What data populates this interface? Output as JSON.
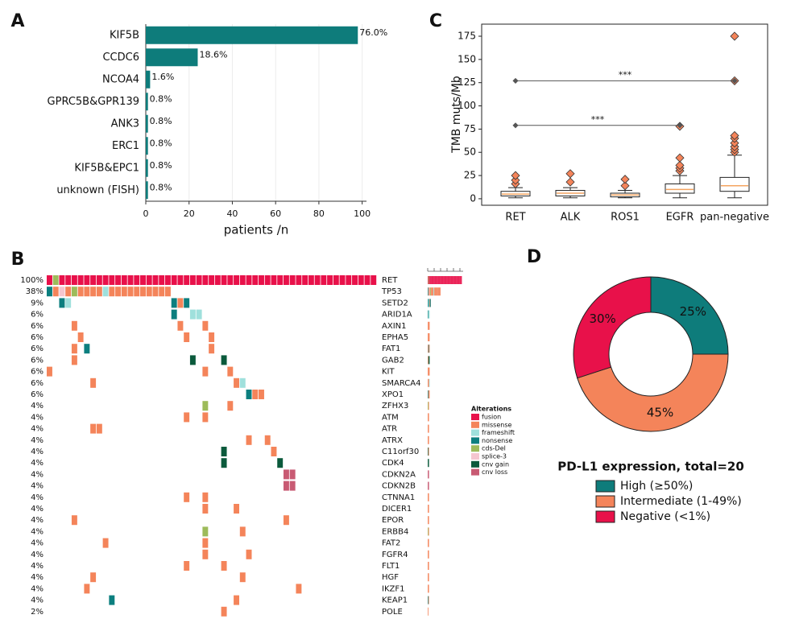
{
  "chart_data": [
    {
      "type": "bar",
      "panel": "A",
      "orientation": "horizontal",
      "categories": [
        "KIF5B",
        "CCDC6",
        "NCOA4",
        "GPRC5B&GPR139",
        "ANK3",
        "ERC1",
        "KIF5B&EPC1",
        "unknown (FISH)"
      ],
      "values": [
        98,
        24,
        2,
        1,
        1,
        1,
        1,
        1
      ],
      "value_labels": [
        "76.0%",
        "18.6%",
        "1.6%",
        "0.8%",
        "0.8%",
        "0.8%",
        "0.8%",
        "0.8%"
      ],
      "color": "#0e7c7b",
      "xlabel": "patients /n",
      "xlim": [
        0,
        102
      ],
      "xticks": [
        0,
        20,
        40,
        60,
        80,
        100
      ],
      "grid": true
    },
    {
      "type": "oncoprint",
      "panel": "B",
      "legend_title": "Alterations",
      "alteration_types": [
        {
          "name": "fusion",
          "color": "#e8114a"
        },
        {
          "name": "missense",
          "color": "#f4845a"
        },
        {
          "name": "frameshift",
          "color": "#9fe0dc"
        },
        {
          "name": "nonsense",
          "color": "#0c7f7f"
        },
        {
          "name": "cds-Del",
          "color": "#9dbb5a"
        },
        {
          "name": "splice-3",
          "color": "#f5c6cf"
        },
        {
          "name": "cnv gain",
          "color": "#0b5a3c"
        },
        {
          "name": "cnv loss",
          "color": "#c85a73"
        }
      ],
      "n_samples": 53,
      "side_xlim": [
        0,
        55
      ],
      "side_xticks": [
        0,
        10,
        20,
        30,
        40,
        50
      ],
      "genes": [
        {
          "name": "RET",
          "frequency": "100%",
          "alterations": [
            [
              0,
              0
            ],
            [
              1,
              4
            ],
            [
              2,
              0
            ],
            [
              3,
              0
            ],
            [
              4,
              0
            ],
            [
              5,
              0
            ],
            [
              6,
              0
            ],
            [
              7,
              0
            ],
            [
              8,
              0
            ],
            [
              9,
              0
            ],
            [
              10,
              0
            ],
            [
              11,
              0
            ],
            [
              12,
              0
            ],
            [
              13,
              0
            ],
            [
              14,
              0
            ],
            [
              15,
              0
            ],
            [
              16,
              0
            ],
            [
              17,
              0
            ],
            [
              18,
              0
            ],
            [
              19,
              0
            ],
            [
              20,
              0
            ],
            [
              21,
              0
            ],
            [
              22,
              0
            ],
            [
              23,
              0
            ],
            [
              24,
              0
            ],
            [
              25,
              0
            ],
            [
              26,
              0
            ],
            [
              27,
              0
            ],
            [
              28,
              0
            ],
            [
              29,
              0
            ],
            [
              30,
              0
            ],
            [
              31,
              0
            ],
            [
              32,
              0
            ],
            [
              33,
              0
            ],
            [
              34,
              0
            ],
            [
              35,
              0
            ],
            [
              36,
              0
            ],
            [
              37,
              0
            ],
            [
              38,
              0
            ],
            [
              39,
              0
            ],
            [
              40,
              0
            ],
            [
              41,
              0
            ],
            [
              42,
              0
            ],
            [
              43,
              0
            ],
            [
              44,
              0
            ],
            [
              45,
              0
            ],
            [
              46,
              0
            ],
            [
              47,
              0
            ],
            [
              48,
              0
            ],
            [
              49,
              0
            ],
            [
              50,
              0
            ],
            [
              51,
              0
            ],
            [
              52,
              0
            ]
          ]
        },
        {
          "name": "TP53",
          "frequency": "38%",
          "alterations": [
            [
              0,
              3
            ],
            [
              1,
              1
            ],
            [
              2,
              5
            ],
            [
              3,
              1
            ],
            [
              4,
              4
            ],
            [
              5,
              1
            ],
            [
              6,
              1
            ],
            [
              7,
              1
            ],
            [
              8,
              1
            ],
            [
              9,
              2
            ],
            [
              10,
              1
            ],
            [
              11,
              1
            ],
            [
              12,
              1
            ],
            [
              13,
              1
            ],
            [
              14,
              1
            ],
            [
              15,
              1
            ],
            [
              16,
              1
            ],
            [
              17,
              1
            ],
            [
              18,
              1
            ],
            [
              19,
              1
            ]
          ]
        },
        {
          "name": "SETD2",
          "frequency": "9%",
          "alterations": [
            [
              2,
              3
            ],
            [
              3,
              2
            ],
            [
              20,
              3
            ],
            [
              21,
              1
            ],
            [
              22,
              3
            ]
          ]
        },
        {
          "name": "ARID1A",
          "frequency": "6%",
          "alterations": [
            [
              20,
              3
            ],
            [
              23,
              2
            ],
            [
              24,
              2
            ]
          ]
        },
        {
          "name": "AXIN1",
          "frequency": "6%",
          "alterations": [
            [
              4,
              1
            ],
            [
              21,
              1
            ],
            [
              25,
              1
            ]
          ]
        },
        {
          "name": "EPHA5",
          "frequency": "6%",
          "alterations": [
            [
              5,
              1
            ],
            [
              22,
              1
            ],
            [
              26,
              1
            ]
          ]
        },
        {
          "name": "FAT1",
          "frequency": "6%",
          "alterations": [
            [
              4,
              1
            ],
            [
              6,
              3
            ],
            [
              26,
              1
            ]
          ]
        },
        {
          "name": "GAB2",
          "frequency": "6%",
          "alterations": [
            [
              4,
              1
            ],
            [
              23,
              6
            ],
            [
              28,
              6
            ]
          ]
        },
        {
          "name": "KIT",
          "frequency": "6%",
          "alterations": [
            [
              0,
              1
            ],
            [
              25,
              1
            ],
            [
              29,
              1
            ]
          ]
        },
        {
          "name": "SMARCA4",
          "frequency": "6%",
          "alterations": [
            [
              7,
              1
            ],
            [
              30,
              1
            ],
            [
              31,
              2
            ]
          ]
        },
        {
          "name": "XPO1",
          "frequency": "6%",
          "alterations": [
            [
              32,
              3
            ],
            [
              33,
              1
            ],
            [
              34,
              1
            ]
          ]
        },
        {
          "name": "ZFHX3",
          "frequency": "4%",
          "alterations": [
            [
              25,
              4
            ],
            [
              29,
              1
            ]
          ]
        },
        {
          "name": "ATM",
          "frequency": "4%",
          "alterations": [
            [
              22,
              1
            ],
            [
              25,
              1
            ]
          ]
        },
        {
          "name": "ATR",
          "frequency": "4%",
          "alterations": [
            [
              7,
              1
            ],
            [
              8,
              1
            ]
          ]
        },
        {
          "name": "ATRX",
          "frequency": "4%",
          "alterations": [
            [
              32,
              1
            ],
            [
              35,
              1
            ]
          ]
        },
        {
          "name": "C11orf30",
          "frequency": "4%",
          "alterations": [
            [
              28,
              6
            ],
            [
              36,
              1
            ]
          ]
        },
        {
          "name": "CDK4",
          "frequency": "4%",
          "alterations": [
            [
              28,
              6
            ],
            [
              37,
              6
            ]
          ]
        },
        {
          "name": "CDKN2A",
          "frequency": "4%",
          "alterations": [
            [
              38,
              7
            ],
            [
              39,
              7
            ]
          ]
        },
        {
          "name": "CDKN2B",
          "frequency": "4%",
          "alterations": [
            [
              38,
              7
            ],
            [
              39,
              7
            ]
          ]
        },
        {
          "name": "CTNNA1",
          "frequency": "4%",
          "alterations": [
            [
              22,
              1
            ],
            [
              25,
              1
            ]
          ]
        },
        {
          "name": "DICER1",
          "frequency": "4%",
          "alterations": [
            [
              25,
              1
            ],
            [
              30,
              1
            ]
          ]
        },
        {
          "name": "EPOR",
          "frequency": "4%",
          "alterations": [
            [
              4,
              1
            ],
            [
              38,
              1
            ]
          ]
        },
        {
          "name": "ERBB4",
          "frequency": "4%",
          "alterations": [
            [
              25,
              4
            ],
            [
              31,
              1
            ]
          ]
        },
        {
          "name": "FAT2",
          "frequency": "4%",
          "alterations": [
            [
              9,
              1
            ],
            [
              25,
              1
            ]
          ]
        },
        {
          "name": "FGFR4",
          "frequency": "4%",
          "alterations": [
            [
              25,
              1
            ],
            [
              32,
              1
            ]
          ]
        },
        {
          "name": "FLT1",
          "frequency": "4%",
          "alterations": [
            [
              22,
              1
            ],
            [
              28,
              1
            ]
          ]
        },
        {
          "name": "HGF",
          "frequency": "4%",
          "alterations": [
            [
              7,
              1
            ],
            [
              31,
              1
            ]
          ]
        },
        {
          "name": "IKZF1",
          "frequency": "4%",
          "alterations": [
            [
              6,
              1
            ],
            [
              40,
              1
            ]
          ]
        },
        {
          "name": "KEAP1",
          "frequency": "4%",
          "alterations": [
            [
              10,
              3
            ],
            [
              30,
              1
            ]
          ]
        },
        {
          "name": "POLE",
          "frequency": "2%",
          "alterations": [
            [
              28,
              1
            ]
          ]
        }
      ]
    },
    {
      "type": "box",
      "panel": "C",
      "ylabel": "TMB muts/Mb",
      "categories": [
        "RET",
        "ALK",
        "ROS1",
        "EGFR",
        "pan-negative"
      ],
      "boxes": [
        {
          "whislo": 1,
          "q1": 3,
          "med": 5,
          "q3": 8,
          "whishi": 12,
          "fliers": [
            16,
            20,
            25
          ]
        },
        {
          "whislo": 1,
          "q1": 3,
          "med": 6,
          "q3": 9,
          "whishi": 12,
          "fliers": [
            18,
            27
          ]
        },
        {
          "whislo": 1,
          "q1": 2,
          "med": 4,
          "q3": 6,
          "whishi": 9,
          "fliers": [
            14,
            21
          ]
        },
        {
          "whislo": 1,
          "q1": 6,
          "med": 10,
          "q3": 16,
          "whishi": 25,
          "fliers": [
            30,
            33,
            36,
            44,
            78
          ]
        },
        {
          "whislo": 1,
          "q1": 8,
          "med": 14,
          "q3": 23,
          "whishi": 47,
          "fliers": [
            50,
            53,
            56,
            60,
            65,
            68,
            127,
            175
          ]
        }
      ],
      "brackets": [
        {
          "from": 0,
          "to": 4,
          "y": 127,
          "label": "***"
        },
        {
          "from": 0,
          "to": 3,
          "y": 79,
          "label": "***"
        }
      ],
      "ylim": [
        -7,
        188
      ],
      "yticks": [
        0,
        25,
        50,
        75,
        100,
        125,
        150,
        175
      ]
    },
    {
      "type": "pie",
      "panel": "D",
      "donut": true,
      "title": "PD-L1 expression, total=20",
      "series": [
        {
          "name": "High (≥50%)",
          "color": "#0e7c7b"
        },
        {
          "name": "Intermediate (1-49%)",
          "color": "#f4845a"
        },
        {
          "name": "Negative (<1%)",
          "color": "#e8114a"
        }
      ],
      "values": [
        25,
        45,
        30
      ],
      "value_labels": [
        "25%",
        "45%",
        "30%"
      ]
    }
  ]
}
